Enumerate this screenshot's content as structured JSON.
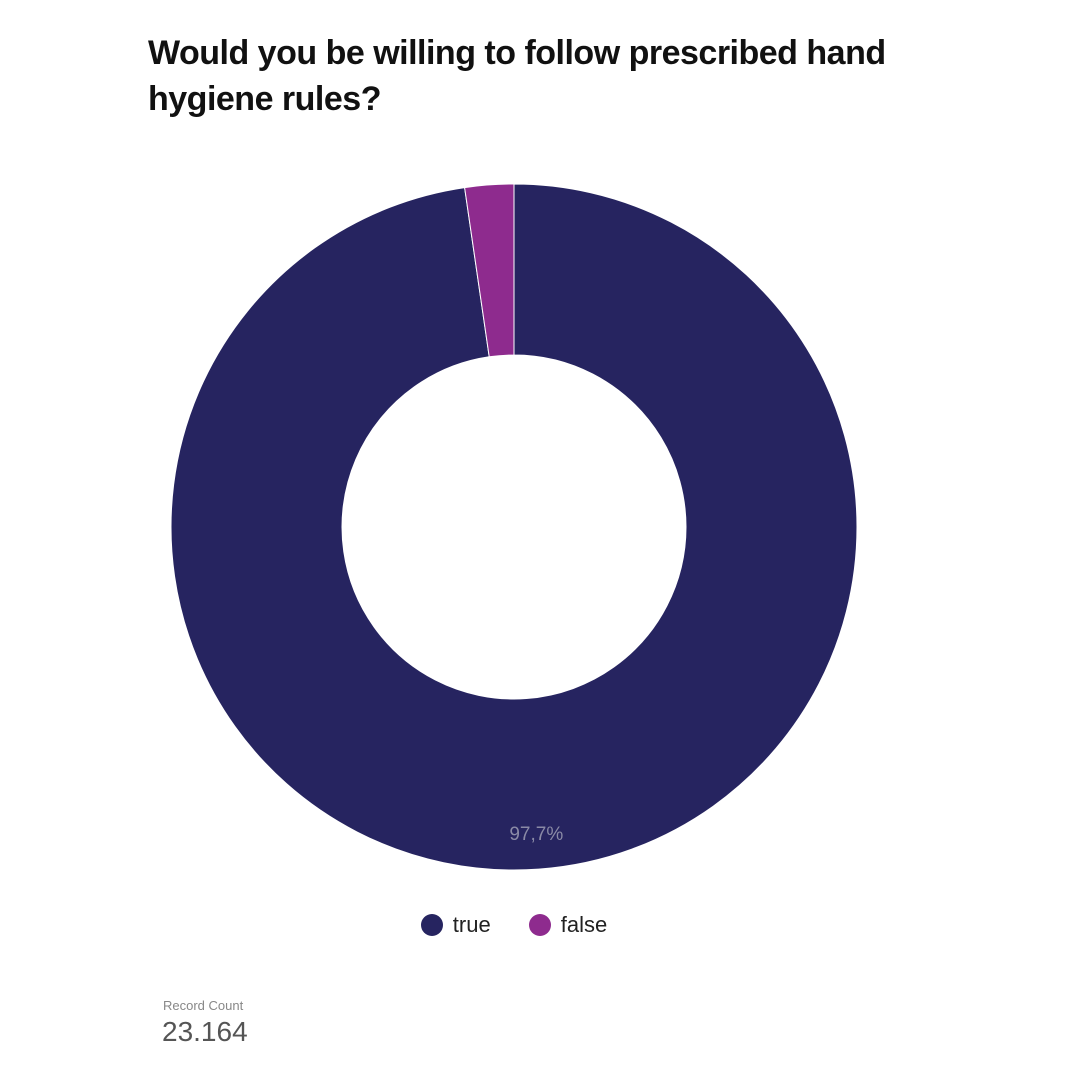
{
  "chart_data": {
    "type": "pie",
    "title": "Would you be willing to follow prescribed hand hygiene rules?",
    "donut": true,
    "slices": [
      {
        "label": "true",
        "value": 97.7,
        "display": "97,7%",
        "color": "#262460"
      },
      {
        "label": "false",
        "value": 2.3,
        "display": "",
        "color": "#8E2B8E"
      }
    ],
    "legend_position": "bottom"
  },
  "scorecard": {
    "label": "Record Count",
    "value": "23.164"
  }
}
